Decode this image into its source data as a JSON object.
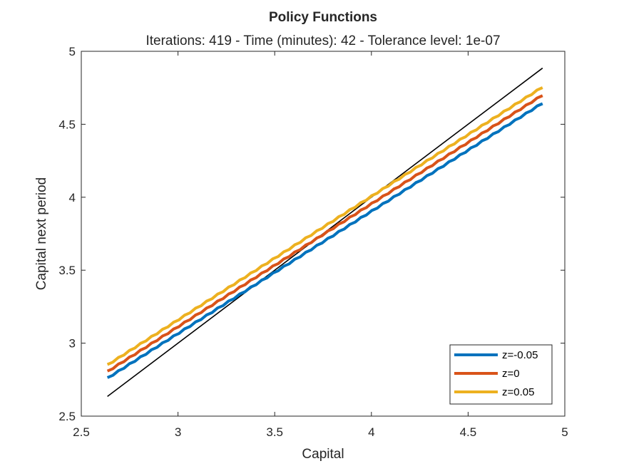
{
  "chart_data": {
    "type": "line",
    "title": "Policy Functions",
    "subtitle": "Iterations: 419 - Time (minutes): 42 - Tolerance level: 1e-07",
    "xlabel": "Capital",
    "ylabel": "Capital next period",
    "xlim": [
      2.5,
      5
    ],
    "ylim": [
      2.5,
      5
    ],
    "xticks": [
      "2.5",
      "3",
      "3.5",
      "4",
      "4.5",
      "5"
    ],
    "yticks": [
      "2.5",
      "3",
      "3.5",
      "4",
      "4.5",
      "5"
    ],
    "grid": false,
    "legend_position": "bottom-right",
    "series": [
      {
        "name": "z=-0.05",
        "color": "#0072BD",
        "x": [
          2.635,
          4.885
        ],
        "y": [
          2.76,
          4.645
        ]
      },
      {
        "name": "z=0",
        "color": "#D95319",
        "x": [
          2.635,
          4.885
        ],
        "y": [
          2.805,
          4.7
        ]
      },
      {
        "name": "z=0.05",
        "color": "#EDB120",
        "x": [
          2.635,
          4.885
        ],
        "y": [
          2.85,
          4.755
        ]
      },
      {
        "color": "#000000",
        "x": [
          2.635,
          4.885
        ],
        "y": [
          2.635,
          4.885
        ]
      }
    ]
  }
}
